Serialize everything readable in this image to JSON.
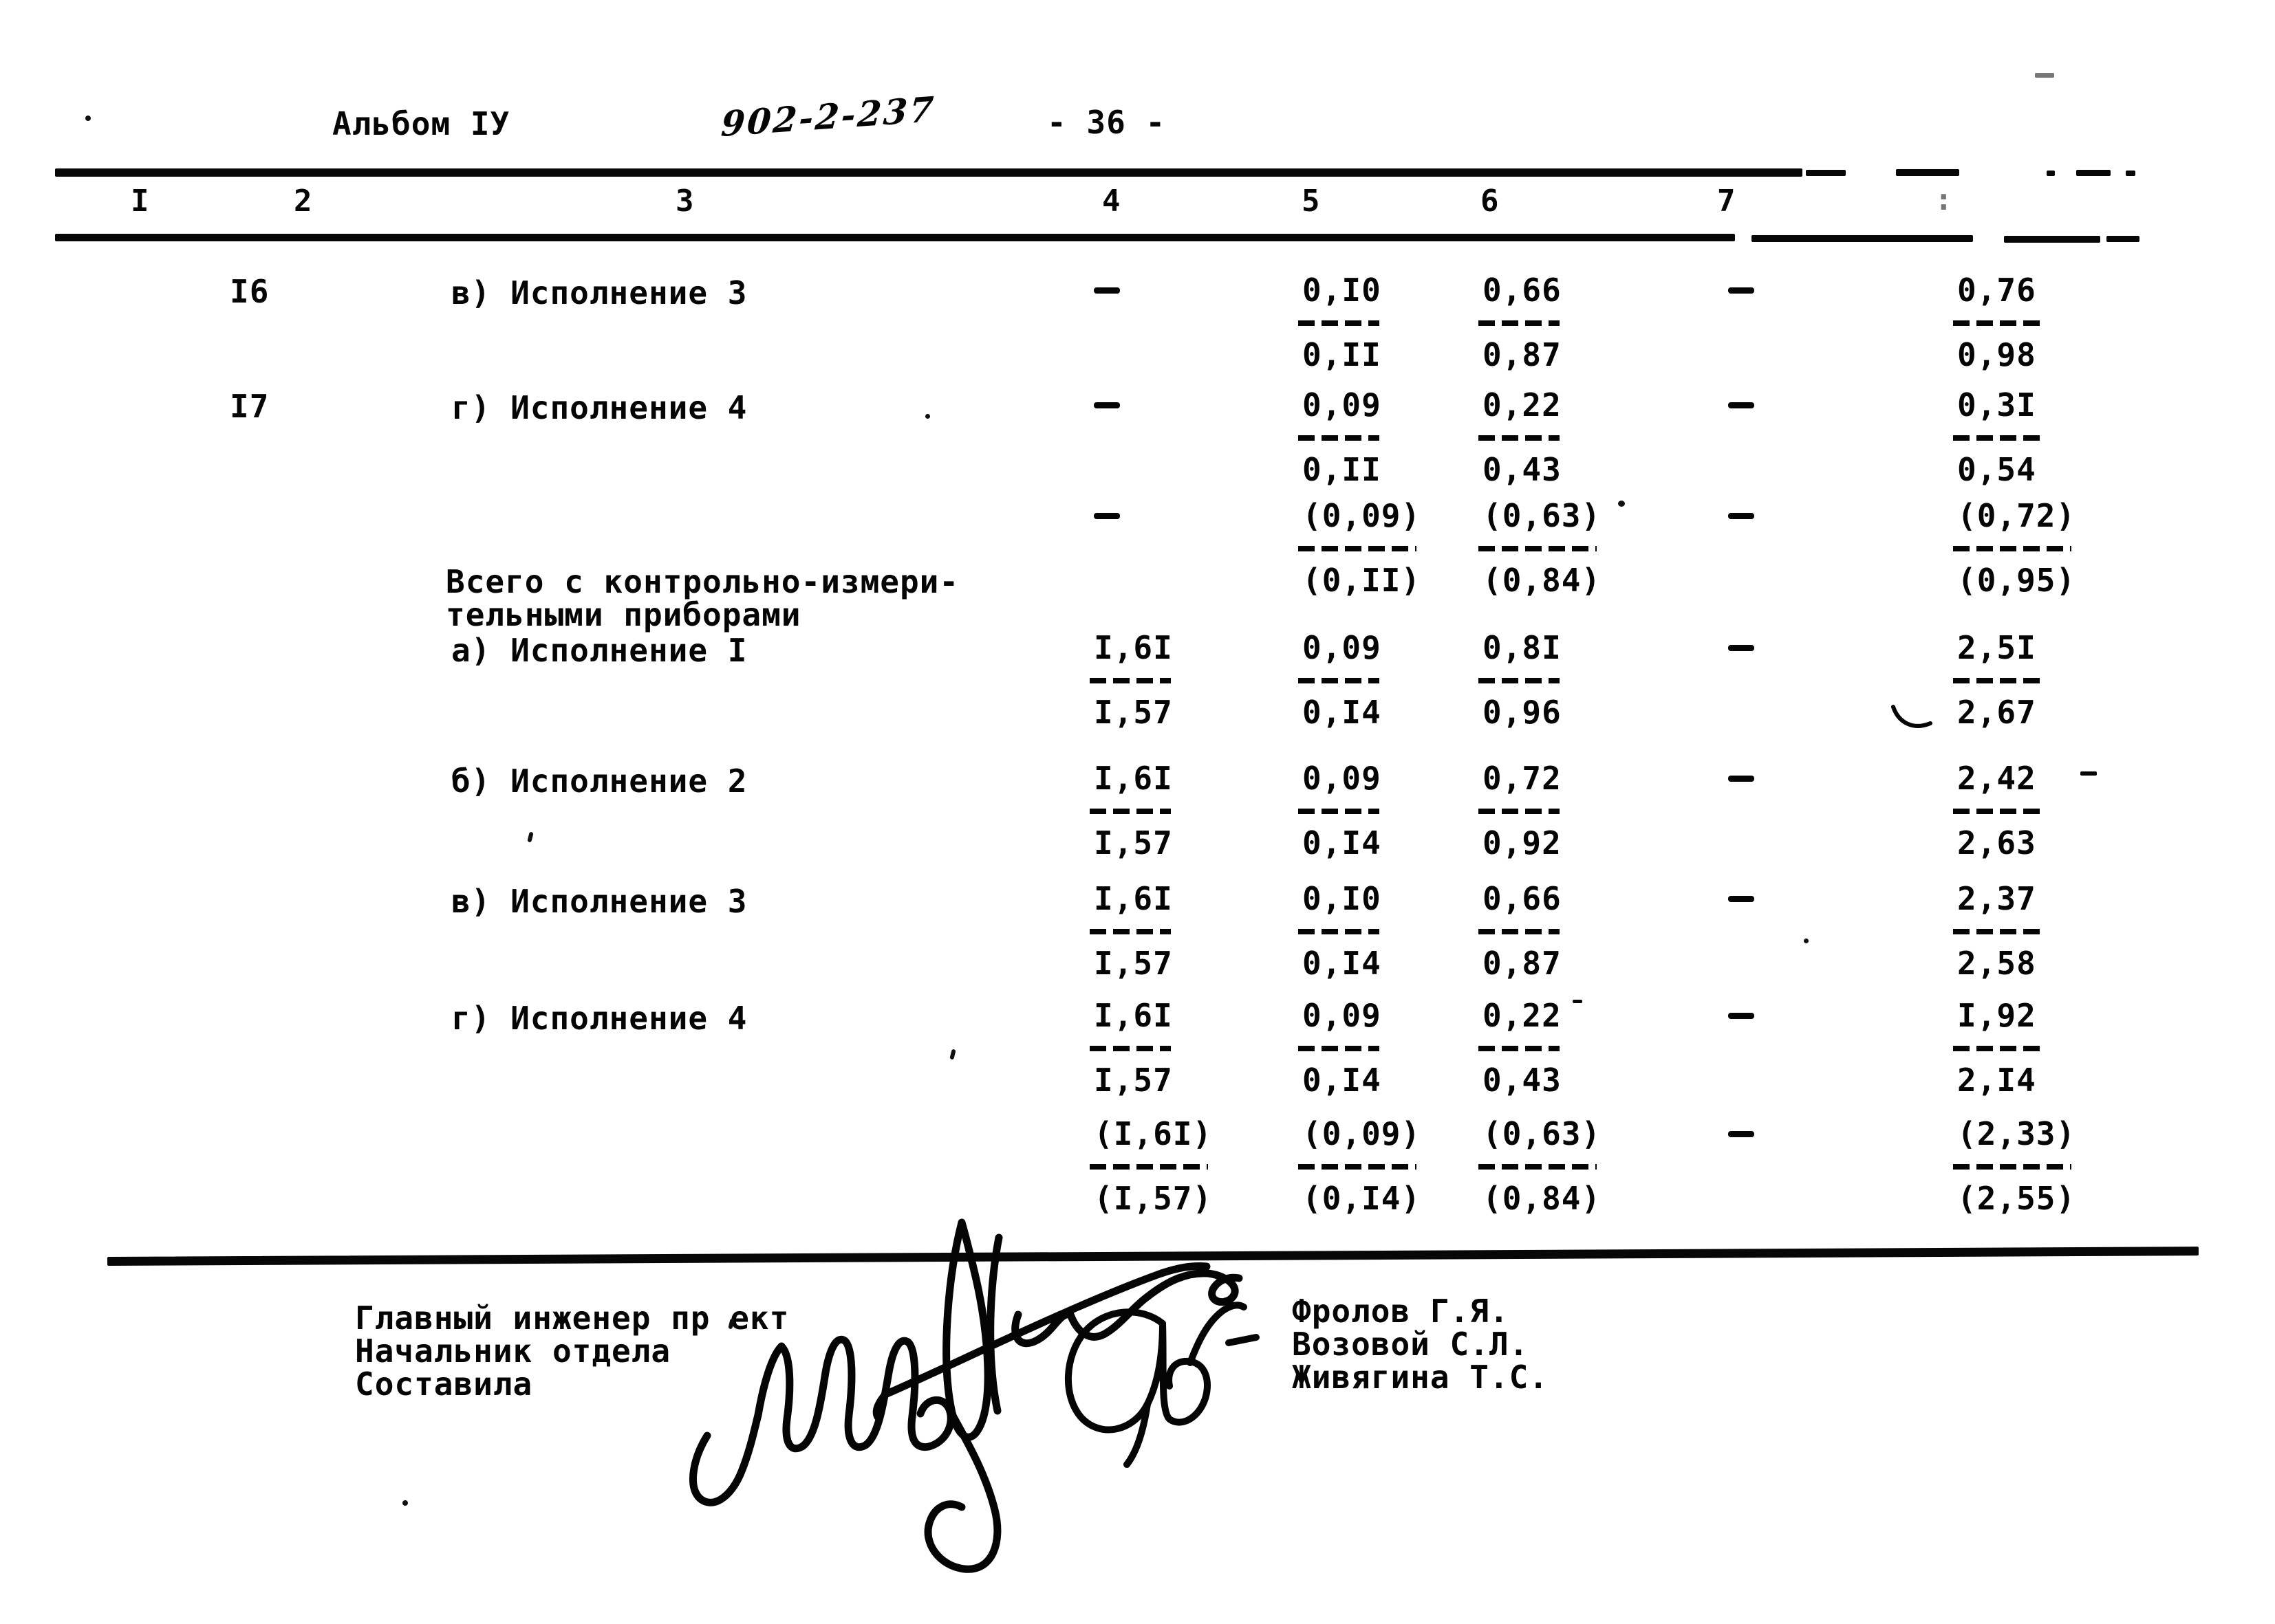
{
  "page": {
    "album": "Альбом IУ",
    "doc_number": "902-2-237",
    "page_number": "- 36 -"
  },
  "table": {
    "column_headers": [
      "I",
      "2",
      "3",
      "4",
      "5",
      "6",
      "7"
    ],
    "faint_col8_mark": ":",
    "rows": [
      {
        "num": "I6",
        "label": "в) Исполнение 3",
        "c4": "-",
        "c5": [
          "0,I0",
          "0,II"
        ],
        "c6": [
          "0,66",
          "0,87"
        ],
        "c7": "-",
        "c8": [
          "0,76",
          "0,98"
        ]
      },
      {
        "num": "I7",
        "label": "г) Исполнение 4",
        "c4": "-",
        "c5": [
          "0,09",
          "0,II"
        ],
        "c6": [
          "0,22",
          "0,43"
        ],
        "c7": "-",
        "c8": [
          "0,3I",
          "0,54"
        ]
      },
      {
        "c4": "-",
        "c5": [
          "(0,09)",
          "(0,II)"
        ],
        "c6": [
          "(0,63)",
          "(0,84)"
        ],
        "c7": "-",
        "c8": [
          "(0,72)",
          "(0,95)"
        ]
      },
      {
        "pre": [
          "Всего с контрольно-измери-",
          "тельными приборами"
        ],
        "label": "а) Исполнение I",
        "c4": [
          "I,6I",
          "I,57"
        ],
        "c5": [
          "0,09",
          "0,I4"
        ],
        "c6": [
          "0,8I",
          "0,96"
        ],
        "c7": "-",
        "c8": [
          "2,5I",
          "2,67"
        ]
      },
      {
        "label": "б) Исполнение 2",
        "c4": [
          "I,6I",
          "I,57"
        ],
        "c5": [
          "0,09",
          "0,I4"
        ],
        "c6": [
          "0,72",
          "0,92"
        ],
        "c7": "-",
        "c8": [
          "2,42",
          "2,63"
        ]
      },
      {
        "label": "в) Исполнение 3",
        "c4": [
          "I,6I",
          "I,57"
        ],
        "c5": [
          "0,I0",
          "0,I4"
        ],
        "c6": [
          "0,66",
          "0,87"
        ],
        "c7": "-",
        "c8": [
          "2,37",
          "2,58"
        ]
      },
      {
        "label": "г) Исполнение 4",
        "c4": [
          "I,6I",
          "I,57"
        ],
        "c5": [
          "0,09",
          "0,I4"
        ],
        "c6": [
          "0,22",
          "0,43"
        ],
        "c7": "-",
        "c8": [
          "I,92",
          "2,I4"
        ]
      },
      {
        "c4": [
          "(I,6I)",
          "(I,57)"
        ],
        "c5": [
          "(0,09)",
          "(0,I4)"
        ],
        "c6": [
          "(0,63)",
          "(0,84)"
        ],
        "c7": "-",
        "c8": [
          "(2,33)",
          "(2,55)"
        ]
      }
    ]
  },
  "footer": {
    "roles": [
      "Главный инженер пр ект",
      "Начальник отдела",
      "Составила"
    ],
    "names": [
      "Фролов Г.Я.",
      "Возовой С.Л.",
      "Живягина Т.С."
    ]
  }
}
